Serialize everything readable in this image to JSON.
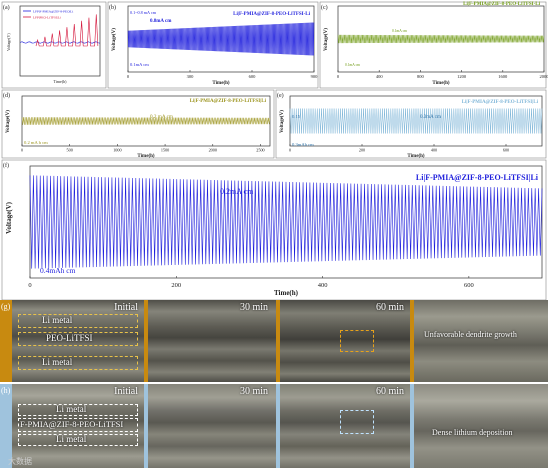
{
  "colors": {
    "blue": "#1e1edc",
    "green": "#6f9a14",
    "olive": "#9a921a",
    "lightblue": "#7fb6d8",
    "red": "#d4143a",
    "orange_band": "#c88a10",
    "blue_band": "#9fc3dd",
    "photo_dark": "#3a3a36",
    "photo_mid": "#6c6b63",
    "photo_light": "#a9a89d"
  },
  "chart_data": [
    {
      "id": "a",
      "panel_label": "(a)",
      "type": "line",
      "ylabel": "Voltage(V)",
      "xlabel": "Time(h)",
      "ylim": [
        0,
        7
      ],
      "xlim": [
        0,
        6
      ],
      "legend": [
        "LFP|F-PMIA@ZIF-8-PEO|Li",
        "LFP|PEO-LiTFSI|Li"
      ],
      "legend_colors": [
        "#1e1edc",
        "#d4143a"
      ],
      "series": [
        {
          "name": "LFP|F-PMIA@ZIF-8-PEO|Li",
          "color": "#1e1edc",
          "x": [
            0,
            6
          ],
          "y": [
            3.4,
            3.4
          ]
        },
        {
          "name": "LFP|PEO-LiTFSI|Li",
          "color": "#d4143a",
          "x": [
            0,
            6
          ],
          "y": [
            3.0,
            6.2
          ]
        }
      ]
    },
    {
      "id": "b",
      "panel_label": "(b)",
      "type": "line",
      "title": "Li|F-PMIA@ZIF-8-PEO-LiTFSI-Li",
      "ylabel": "Voltage(V)",
      "xlabel": "Time(h)",
      "xticks": [
        "0",
        "300",
        "600",
        "900"
      ],
      "xlim": [
        0,
        900
      ],
      "ylim": [
        -0.4,
        0.4
      ],
      "annotations": [
        "0.1~0.8 mA cm",
        "0.8mA cm",
        "0.1mA cm"
      ],
      "series": [
        {
          "color": "#1e1edc",
          "amplitude_start": 0.1,
          "amplitude_end": 0.2,
          "x_end": 900
        }
      ]
    },
    {
      "id": "c",
      "panel_label": "(c)",
      "type": "line",
      "title": "Li|F-PMIA@ZIF-8-PEO-LiTFSI-Li",
      "ylabel": "Voltage(V)",
      "xlabel": "Time(h)",
      "xticks": [
        "0",
        "400",
        "800",
        "1200",
        "1600",
        "2000"
      ],
      "xlim": [
        0,
        2000
      ],
      "ylim": [
        -0.4,
        0.4
      ],
      "annotations": [
        "0.1mA cm",
        "0.1mA cm"
      ],
      "series": [
        {
          "color": "#6f9a14",
          "amplitude_start": 0.05,
          "amplitude_end": 0.04,
          "x_end": 2000
        }
      ]
    },
    {
      "id": "d",
      "panel_label": "(d)",
      "type": "line",
      "title": "Li|F-PMIA@ZIF-8-PEO-LiTFSI|Li",
      "ylabel": "Voltage(V)",
      "xlabel": "Time(h)",
      "xticks": [
        "0",
        "500",
        "1000",
        "1500",
        "2000",
        "2500"
      ],
      "xlim": [
        0,
        2600
      ],
      "ylim": [
        -0.4,
        0.4
      ],
      "annotations": [
        "0.2 mA cm",
        "0.2 mA h cm"
      ],
      "series": [
        {
          "color": "#9a921a",
          "amplitude_start": 0.06,
          "amplitude_end": 0.05,
          "x_end": 2600
        }
      ]
    },
    {
      "id": "e",
      "panel_label": "(e)",
      "type": "line",
      "title": "Li|F-PMIA@ZIF-8-PEO-LiTFSI|Li",
      "ylabel": "Voltage(V)",
      "xlabel": "Time(h)",
      "xticks": [
        "0",
        "200",
        "400",
        "600"
      ],
      "xlim": [
        0,
        700
      ],
      "ylim": [
        -0.3,
        0.3
      ],
      "annotations": [
        "0.15",
        "0.3mA cm",
        "0.3mAh cm"
      ],
      "series": [
        {
          "color": "#7fb6d8",
          "amplitude_start": 0.15,
          "amplitude_end": 0.15,
          "x_end": 700
        }
      ]
    },
    {
      "id": "f",
      "panel_label": "(f)",
      "type": "line",
      "title": "Li|F-PMIA@ZIF-8-PEO-LiTFSI|Li",
      "ylabel": "Voltage(V)",
      "xlabel": "Time(h)",
      "xticks": [
        "0",
        "200",
        "400",
        "600"
      ],
      "xlim": [
        0,
        700
      ],
      "ylim": [
        -0.3,
        0.3
      ],
      "annotations": [
        "0.2mA cm",
        "0.4mAh cm"
      ],
      "series": [
        {
          "color": "#1e1edc",
          "amplitude_start": 0.25,
          "amplitude_end": 0.18,
          "x_end": 700
        }
      ]
    }
  ],
  "photos": {
    "g": {
      "panel_label": "(g)",
      "times": [
        "Initial",
        "30 min",
        "60 min"
      ],
      "layer_labels": [
        "Li metal",
        "PEO-LiTFSI",
        "Li metal"
      ],
      "zoom_text": "Unfavorable dendrite growth"
    },
    "h": {
      "panel_label": "(h)",
      "times": [
        "Initial",
        "30 min",
        "60 min"
      ],
      "layer_labels": [
        "Li metal",
        "F-PMIA@ZIF-8-PEO-LiTFSI",
        "Li metal"
      ],
      "zoom_text": "Dense lithium deposition"
    },
    "watermark": "大数据"
  }
}
